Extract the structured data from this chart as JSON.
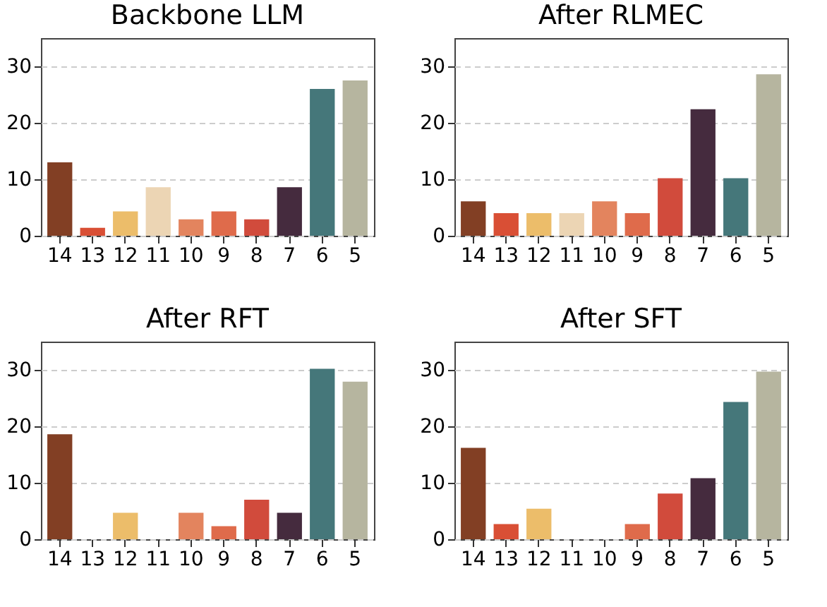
{
  "chart_data": [
    {
      "type": "bar",
      "title": "Backbone LLM",
      "categories": [
        "14",
        "13",
        "12",
        "11",
        "10",
        "9",
        "8",
        "7",
        "6",
        "5"
      ],
      "colors": [
        "#823f24",
        "#d94f35",
        "#ecbd6a",
        "#ecd5b4",
        "#e3845e",
        "#df6b4b",
        "#d14b3c",
        "#452b3e",
        "#45777a",
        "#b6b59f"
      ],
      "values": [
        13,
        1.4,
        4.3,
        8.6,
        2.9,
        4.3,
        2.9,
        8.6,
        26,
        27.5
      ],
      "ylim": [
        0,
        35
      ],
      "yticks": [
        0,
        10,
        20,
        30
      ],
      "grid": "y"
    },
    {
      "type": "bar",
      "title": "After RLMEC",
      "categories": [
        "14",
        "13",
        "12",
        "11",
        "10",
        "9",
        "8",
        "7",
        "6",
        "5"
      ],
      "colors": [
        "#823f24",
        "#d94f35",
        "#ecbd6a",
        "#ecd5b4",
        "#e3845e",
        "#df6b4b",
        "#d14b3c",
        "#452b3e",
        "#45777a",
        "#b6b59f"
      ],
      "values": [
        6.1,
        4.0,
        4.0,
        4.0,
        6.1,
        4.0,
        10.2,
        22.4,
        10.2,
        28.6
      ],
      "ylim": [
        0,
        35
      ],
      "yticks": [
        0,
        10,
        20,
        30
      ],
      "grid": "y"
    },
    {
      "type": "bar",
      "title": "After RFT",
      "categories": [
        "14",
        "13",
        "12",
        "11",
        "10",
        "9",
        "8",
        "7",
        "6",
        "5"
      ],
      "colors": [
        "#823f24",
        "#d94f35",
        "#ecbd6a",
        "#ecd5b4",
        "#e3845e",
        "#df6b4b",
        "#d14b3c",
        "#452b3e",
        "#45777a",
        "#b6b59f"
      ],
      "values": [
        18.6,
        0,
        4.7,
        0,
        4.7,
        2.3,
        7.0,
        4.7,
        30.2,
        27.9
      ],
      "ylim": [
        0,
        35
      ],
      "yticks": [
        0,
        10,
        20,
        30
      ],
      "grid": "y"
    },
    {
      "type": "bar",
      "title": "After SFT",
      "categories": [
        "14",
        "13",
        "12",
        "11",
        "10",
        "9",
        "8",
        "7",
        "6",
        "5"
      ],
      "colors": [
        "#823f24",
        "#d94f35",
        "#ecbd6a",
        "#ecd5b4",
        "#e3845e",
        "#df6b4b",
        "#d14b3c",
        "#452b3e",
        "#45777a",
        "#b6b59f"
      ],
      "values": [
        16.2,
        2.7,
        5.4,
        0,
        0,
        2.7,
        8.1,
        10.8,
        24.3,
        29.7
      ],
      "ylim": [
        0,
        35
      ],
      "yticks": [
        0,
        10,
        20,
        30
      ],
      "grid": "y"
    }
  ]
}
